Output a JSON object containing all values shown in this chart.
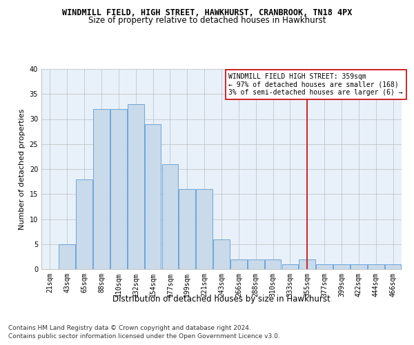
{
  "title": "WINDMILL FIELD, HIGH STREET, HAWKHURST, CRANBROOK, TN18 4PX",
  "subtitle": "Size of property relative to detached houses in Hawkhurst",
  "xlabel": "Distribution of detached houses by size in Hawkhurst",
  "ylabel": "Number of detached properties",
  "footer1": "Contains HM Land Registry data © Crown copyright and database right 2024.",
  "footer2": "Contains public sector information licensed under the Open Government Licence v3.0.",
  "bar_labels": [
    "21sqm",
    "43sqm",
    "65sqm",
    "88sqm",
    "110sqm",
    "132sqm",
    "154sqm",
    "177sqm",
    "199sqm",
    "221sqm",
    "243sqm",
    "266sqm",
    "288sqm",
    "310sqm",
    "333sqm",
    "355sqm",
    "377sqm",
    "399sqm",
    "422sqm",
    "444sqm",
    "466sqm"
  ],
  "bar_values": [
    0,
    5,
    18,
    32,
    32,
    33,
    29,
    21,
    16,
    16,
    6,
    2,
    2,
    2,
    1,
    2,
    1,
    1,
    1,
    1,
    1
  ],
  "bar_color": "#c9daea",
  "bar_edge_color": "#5b9bd5",
  "grid_color": "#bbbbbb",
  "background_color": "#e8f1fa",
  "vline_x_index": 15,
  "vline_color": "#cc0000",
  "annotation_text": "WINDMILL FIELD HIGH STREET: 359sqm\n← 97% of detached houses are smaller (168)\n3% of semi-detached houses are larger (6) →",
  "annotation_box_color": "#ffffff",
  "annotation_edge_color": "#cc0000",
  "ylim": [
    0,
    40
  ],
  "yticks": [
    0,
    5,
    10,
    15,
    20,
    25,
    30,
    35,
    40
  ],
  "title_fontsize": 8.5,
  "subtitle_fontsize": 8.5,
  "xlabel_fontsize": 8.5,
  "ylabel_fontsize": 8,
  "tick_fontsize": 7,
  "annotation_fontsize": 7,
  "footer_fontsize": 6.5
}
